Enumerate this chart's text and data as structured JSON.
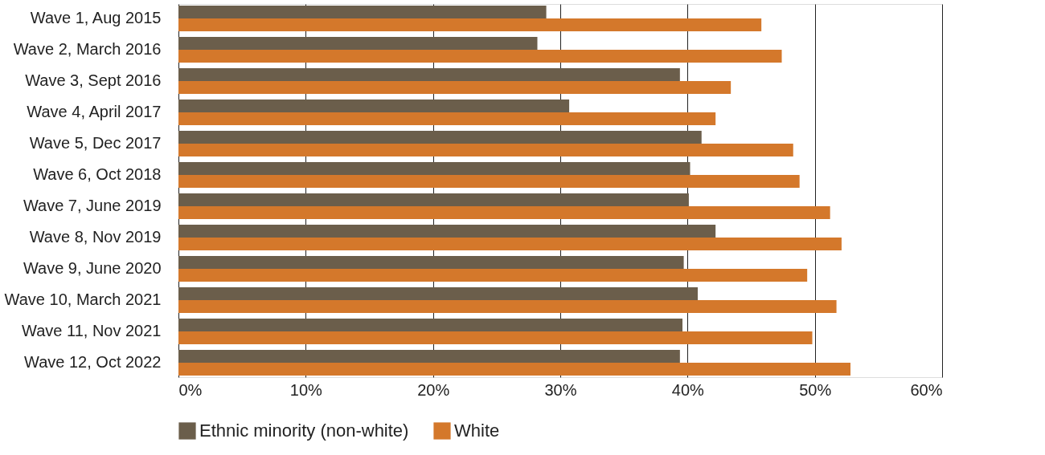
{
  "chart_data": {
    "type": "bar",
    "orientation": "horizontal",
    "categories": [
      "Wave 1, Aug 2015",
      "Wave 2, March 2016",
      "Wave 3, Sept 2016",
      "Wave 4, April 2017",
      "Wave 5, Dec 2017",
      "Wave 6, Oct 2018",
      "Wave 7, June 2019",
      "Wave 8, Nov 2019",
      "Wave 9, June 2020",
      "Wave 10, March 2021",
      "Wave 11, Nov 2021",
      "Wave 12, Oct 2022"
    ],
    "series": [
      {
        "name": "Ethnic minority (non-white)",
        "color": "#6b5e4b",
        "values": [
          28.9,
          28.2,
          39.4,
          30.7,
          41.1,
          40.2,
          40.1,
          42.2,
          39.7,
          40.8,
          39.6,
          39.4
        ]
      },
      {
        "name": "White",
        "color": "#d4782b",
        "values": [
          45.8,
          47.4,
          43.4,
          42.2,
          48.3,
          48.8,
          51.2,
          52.1,
          49.4,
          51.7,
          49.8,
          52.8
        ]
      }
    ],
    "xlim": [
      0,
      60
    ],
    "xticks": [
      {
        "value": 0,
        "label": "0%"
      },
      {
        "value": 10,
        "label": "10%"
      },
      {
        "value": 20,
        "label": "20%"
      },
      {
        "value": 30,
        "label": "30%"
      },
      {
        "value": 40,
        "label": "40%"
      },
      {
        "value": 50,
        "label": "50%"
      },
      {
        "value": 60,
        "label": "60%"
      }
    ],
    "grid": "x",
    "legend": "bottom"
  }
}
